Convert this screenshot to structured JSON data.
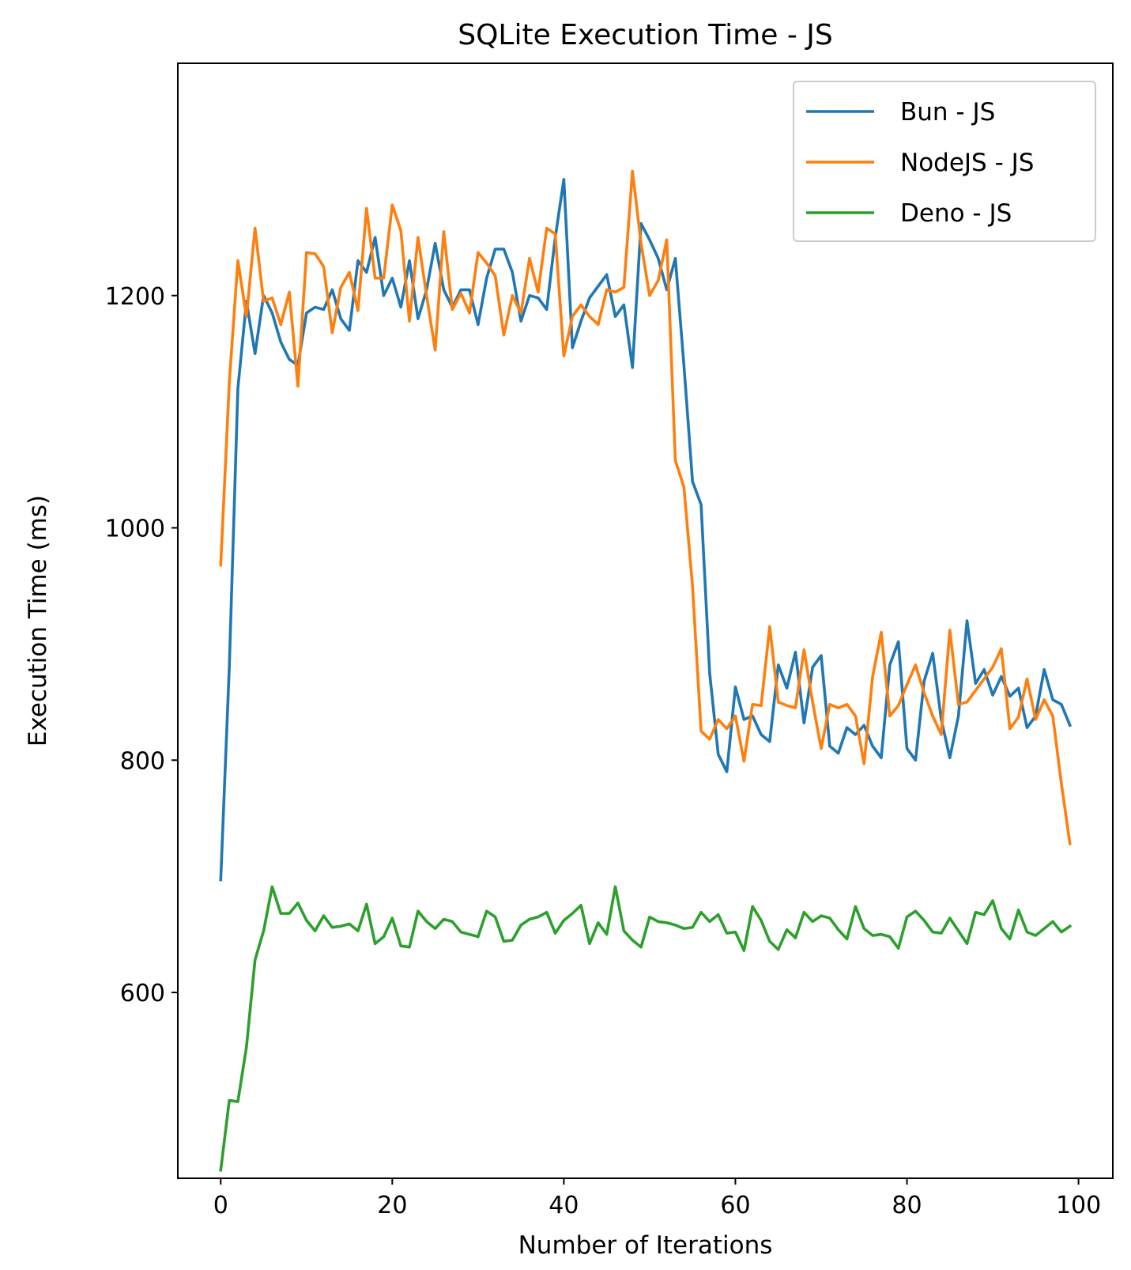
{
  "chart_data": {
    "type": "line",
    "title": "SQLite Execution Time - JS",
    "xlabel": "Number of Iterations",
    "ylabel": "Execution Time (ms)",
    "xlim": [
      -5,
      104
    ],
    "ylim": [
      440,
      1400
    ],
    "xticks": [
      0,
      20,
      40,
      60,
      80,
      100
    ],
    "yticks": [
      600,
      800,
      1000,
      1200
    ],
    "grid": false,
    "legend_position": "top-right",
    "series": [
      {
        "name": "Bun - JS",
        "color": "#1f77b4",
        "values": [
          697,
          880,
          1120,
          1195,
          1150,
          1200,
          1185,
          1160,
          1145,
          1140,
          1185,
          1190,
          1188,
          1205,
          1180,
          1170,
          1230,
          1220,
          1250,
          1200,
          1215,
          1190,
          1230,
          1180,
          1205,
          1245,
          1205,
          1190,
          1205,
          1205,
          1175,
          1215,
          1240,
          1240,
          1220,
          1178,
          1200,
          1198,
          1188,
          1250,
          1300,
          1155,
          1178,
          1198,
          1208,
          1218,
          1182,
          1192,
          1138,
          1262,
          1248,
          1232,
          1205,
          1232,
          1140,
          1040,
          1020,
          875,
          805,
          790,
          863,
          835,
          838,
          822,
          816,
          882,
          862,
          893,
          832,
          880,
          890,
          812,
          806,
          828,
          822,
          830,
          812,
          802,
          882,
          902,
          810,
          800,
          868,
          892,
          835,
          802,
          838,
          920,
          866,
          878,
          856,
          872,
          855,
          862,
          828,
          838,
          878,
          852,
          848,
          830
        ]
      },
      {
        "name": "NodeJS - JS",
        "color": "#ff7f0e",
        "values": [
          968,
          1125,
          1230,
          1182,
          1258,
          1195,
          1198,
          1175,
          1203,
          1122,
          1237,
          1236,
          1225,
          1168,
          1207,
          1220,
          1187,
          1275,
          1215,
          1215,
          1278,
          1256,
          1178,
          1250,
          1200,
          1153,
          1255,
          1188,
          1202,
          1185,
          1237,
          1228,
          1217,
          1166,
          1200,
          1185,
          1232,
          1203,
          1258,
          1253,
          1148,
          1182,
          1192,
          1182,
          1175,
          1205,
          1203,
          1207,
          1307,
          1245,
          1200,
          1213,
          1248,
          1058,
          1035,
          950,
          825,
          818,
          835,
          827,
          838,
          799,
          848,
          847,
          915,
          850,
          847,
          845,
          895,
          850,
          810,
          848,
          845,
          848,
          838,
          797,
          872,
          910,
          838,
          847,
          865,
          882,
          858,
          838,
          822,
          912,
          848,
          850,
          860,
          870,
          880,
          896,
          827,
          837,
          870,
          835,
          852,
          838,
          780,
          728
        ]
      },
      {
        "name": "Deno - JS",
        "color": "#2ca02c",
        "values": [
          447,
          507,
          506,
          553,
          628,
          653,
          691,
          668,
          668,
          677,
          662,
          653,
          666,
          656,
          657,
          659,
          653,
          676,
          642,
          648,
          664,
          640,
          639,
          670,
          661,
          655,
          663,
          661,
          652,
          650,
          648,
          670,
          665,
          644,
          645,
          658,
          663,
          665,
          669,
          651,
          662,
          668,
          675,
          642,
          660,
          650,
          691,
          653,
          645,
          639,
          665,
          661,
          660,
          658,
          655,
          656,
          669,
          661,
          667,
          651,
          652,
          636,
          674,
          662,
          644,
          637,
          654,
          647,
          669,
          661,
          666,
          664,
          654,
          646,
          674,
          655,
          649,
          650,
          648,
          638,
          665,
          670,
          662,
          652,
          651,
          664,
          653,
          642,
          669,
          667,
          679,
          655,
          646,
          671,
          652,
          649,
          655,
          661,
          652,
          657
        ]
      }
    ]
  }
}
